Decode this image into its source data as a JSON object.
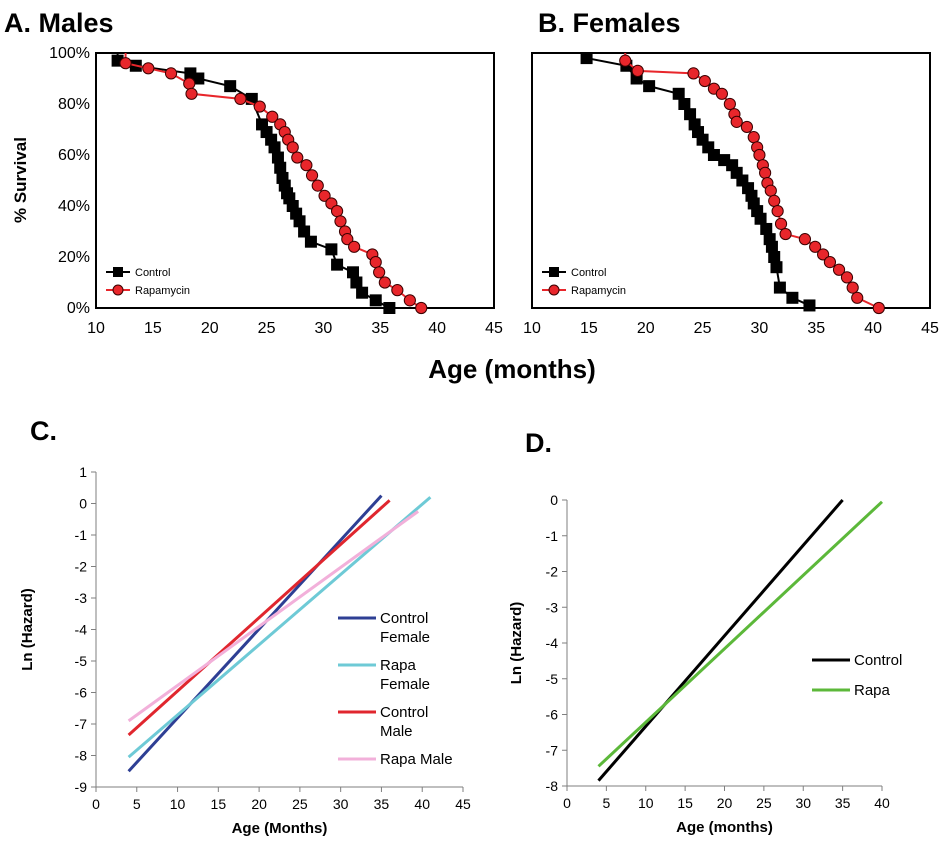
{
  "panel_titles": {
    "A": "A.  Males",
    "B": "B.  Females",
    "C": "C.",
    "D": "D."
  },
  "survival_ylabel": "% Survival",
  "survival_xlabel": "Age (months)",
  "colors": {
    "control": "#000000",
    "rapamycin": "#e8262b",
    "control_female": "#2e3f94",
    "rapa_female": "#6ecad6",
    "control_male": "#e0262e",
    "rapa_male": "#f2b0da",
    "rapa_d": "#5cb83a"
  },
  "chart_data": [
    {
      "type": "line",
      "panel": "A",
      "title": "Males",
      "ylabel": "% Survival",
      "xlabel": "Age (months)",
      "xlim": [
        10,
        45
      ],
      "ylim": [
        0,
        100
      ],
      "x_ticks": [
        "10",
        "15",
        "20",
        "25",
        "30",
        "35",
        "40",
        "45"
      ],
      "y_ticks": [
        "0%",
        "20%",
        "40%",
        "60%",
        "80%",
        "100%"
      ],
      "legend_position": "bottom-left",
      "series": [
        {
          "name": "Control",
          "marker": "square",
          "color": "#000000",
          "x": [
            11.9,
            13.5,
            18.3,
            19.0,
            21.8,
            23.7,
            24.6,
            25.0,
            25.4,
            25.7,
            26.0,
            26.2,
            26.4,
            26.6,
            26.8,
            27.0,
            27.3,
            27.6,
            27.9,
            28.3,
            28.9,
            30.7,
            31.2,
            32.6,
            32.9,
            33.4,
            34.6,
            35.8
          ],
          "y": [
            97,
            95,
            92,
            90,
            87,
            82,
            72,
            69,
            66,
            63,
            59,
            55,
            51,
            48,
            45,
            43,
            40,
            37,
            34,
            30,
            26,
            23,
            17,
            14,
            10,
            6,
            3,
            0
          ]
        },
        {
          "name": "Rapamycin",
          "marker": "circle",
          "color": "#e8262b",
          "x": [
            12.6,
            14.6,
            16.6,
            18.2,
            18.4,
            22.7,
            24.4,
            25.5,
            26.2,
            26.6,
            26.9,
            27.3,
            27.7,
            28.5,
            29.0,
            29.5,
            30.1,
            30.7,
            31.2,
            31.5,
            31.9,
            32.1,
            32.7,
            34.3,
            34.6,
            34.9,
            35.4,
            36.5,
            37.6,
            38.6
          ],
          "y": [
            96,
            94,
            92,
            88,
            84,
            82,
            79,
            75,
            72,
            69,
            66,
            63,
            59,
            56,
            52,
            48,
            44,
            41,
            38,
            34,
            30,
            27,
            24,
            21,
            18,
            14,
            10,
            7,
            3,
            0
          ]
        }
      ]
    },
    {
      "type": "line",
      "panel": "B",
      "title": "Females",
      "xlabel": "Age (months)",
      "xlim": [
        10,
        45
      ],
      "ylim": [
        0,
        100
      ],
      "x_ticks": [
        "10",
        "15",
        "20",
        "25",
        "30",
        "35",
        "40",
        "45"
      ],
      "legend_position": "bottom-left",
      "series": [
        {
          "name": "Control",
          "marker": "square",
          "color": "#000000",
          "x": [
            14.8,
            18.3,
            19.2,
            20.3,
            22.9,
            23.4,
            23.9,
            24.3,
            24.6,
            25.0,
            25.5,
            26.0,
            26.9,
            27.6,
            28.0,
            28.5,
            29.0,
            29.3,
            29.5,
            29.8,
            30.1,
            30.6,
            30.9,
            31.1,
            31.3,
            31.5,
            31.8,
            32.9,
            34.4
          ],
          "y": [
            98,
            95,
            90,
            87,
            84,
            80,
            76,
            72,
            69,
            66,
            63,
            60,
            58,
            56,
            53,
            50,
            47,
            44,
            41,
            38,
            35,
            31,
            27,
            24,
            20,
            16,
            8,
            4,
            1
          ]
        },
        {
          "name": "Rapamycin",
          "marker": "circle",
          "color": "#e8262b",
          "x": [
            18.2,
            19.3,
            24.2,
            25.2,
            26.0,
            26.7,
            27.4,
            27.8,
            28.0,
            28.9,
            29.5,
            29.8,
            30.0,
            30.3,
            30.5,
            30.7,
            31.0,
            31.3,
            31.6,
            31.9,
            32.3,
            34.0,
            34.9,
            35.6,
            36.2,
            37.0,
            37.7,
            38.2,
            38.6,
            40.5
          ],
          "y": [
            97,
            93,
            92,
            89,
            86,
            84,
            80,
            76,
            73,
            71,
            67,
            63,
            60,
            56,
            53,
            49,
            46,
            42,
            38,
            33,
            29,
            27,
            24,
            21,
            18,
            15,
            12,
            8,
            4,
            0
          ]
        }
      ]
    },
    {
      "type": "line",
      "panel": "C",
      "ylabel": "Ln (Hazard)",
      "xlabel": "Age (Months)",
      "xlim": [
        0,
        45
      ],
      "ylim": [
        -9,
        1
      ],
      "x_ticks": [
        "0",
        "5",
        "10",
        "15",
        "20",
        "25",
        "30",
        "35",
        "40",
        "45"
      ],
      "y_ticks": [
        "1",
        "0",
        "-1",
        "-2",
        "-3",
        "-4",
        "-5",
        "-6",
        "-7",
        "-8",
        "-9"
      ],
      "legend_position": "right",
      "series": [
        {
          "name": "Control Female",
          "legend_lines": [
            "Control",
            "Female"
          ],
          "color": "#2e3f94",
          "x": [
            4,
            35
          ],
          "y": [
            -8.5,
            0.25
          ]
        },
        {
          "name": "Rapa Female",
          "legend_lines": [
            "Rapa",
            "Female"
          ],
          "color": "#6ecad6",
          "x": [
            4,
            41
          ],
          "y": [
            -8.05,
            0.2
          ]
        },
        {
          "name": "Control Male",
          "legend_lines": [
            "Control",
            "Male"
          ],
          "color": "#e0262e",
          "x": [
            4,
            36
          ],
          "y": [
            -7.35,
            0.1
          ]
        },
        {
          "name": "Rapa Male",
          "legend_lines": [
            "Rapa Male"
          ],
          "color": "#f2b0da",
          "x": [
            4,
            39.5
          ],
          "y": [
            -6.9,
            -0.25
          ]
        }
      ]
    },
    {
      "type": "line",
      "panel": "D",
      "ylabel": "Ln (Hazard)",
      "xlabel": "Age (months)",
      "xlim": [
        0,
        40
      ],
      "ylim": [
        -8,
        0
      ],
      "x_ticks": [
        "0",
        "5",
        "10",
        "15",
        "20",
        "25",
        "30",
        "35",
        "40"
      ],
      "y_ticks": [
        "0",
        "-1",
        "-2",
        "-3",
        "-4",
        "-5",
        "-6",
        "-7",
        "-8"
      ],
      "legend_position": "right",
      "series": [
        {
          "name": "Control",
          "legend_lines": [
            "Control"
          ],
          "color": "#000000",
          "x": [
            4,
            35
          ],
          "y": [
            -7.85,
            0
          ]
        },
        {
          "name": "Rapa",
          "legend_lines": [
            "Rapa"
          ],
          "color": "#5cb83a",
          "x": [
            4,
            40
          ],
          "y": [
            -7.45,
            -0.05
          ]
        }
      ]
    }
  ]
}
